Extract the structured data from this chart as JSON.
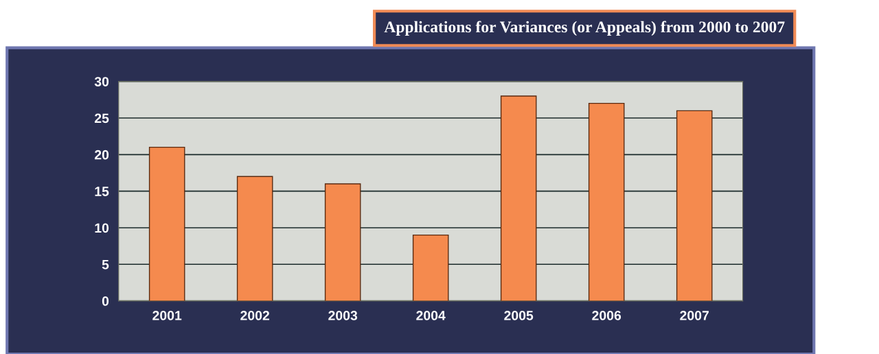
{
  "chart_data": {
    "type": "bar",
    "title": "Applications for Variances (or Appeals) from 2000 to 2007",
    "categories": [
      "2001",
      "2002",
      "2003",
      "2004",
      "2005",
      "2006",
      "2007"
    ],
    "values": [
      21,
      17,
      16,
      9,
      28,
      27,
      26
    ],
    "color": "#f58a4e",
    "ylim": [
      0,
      30
    ],
    "yticks": [
      0,
      5,
      10,
      15,
      20,
      25,
      30
    ],
    "grid": "y"
  }
}
